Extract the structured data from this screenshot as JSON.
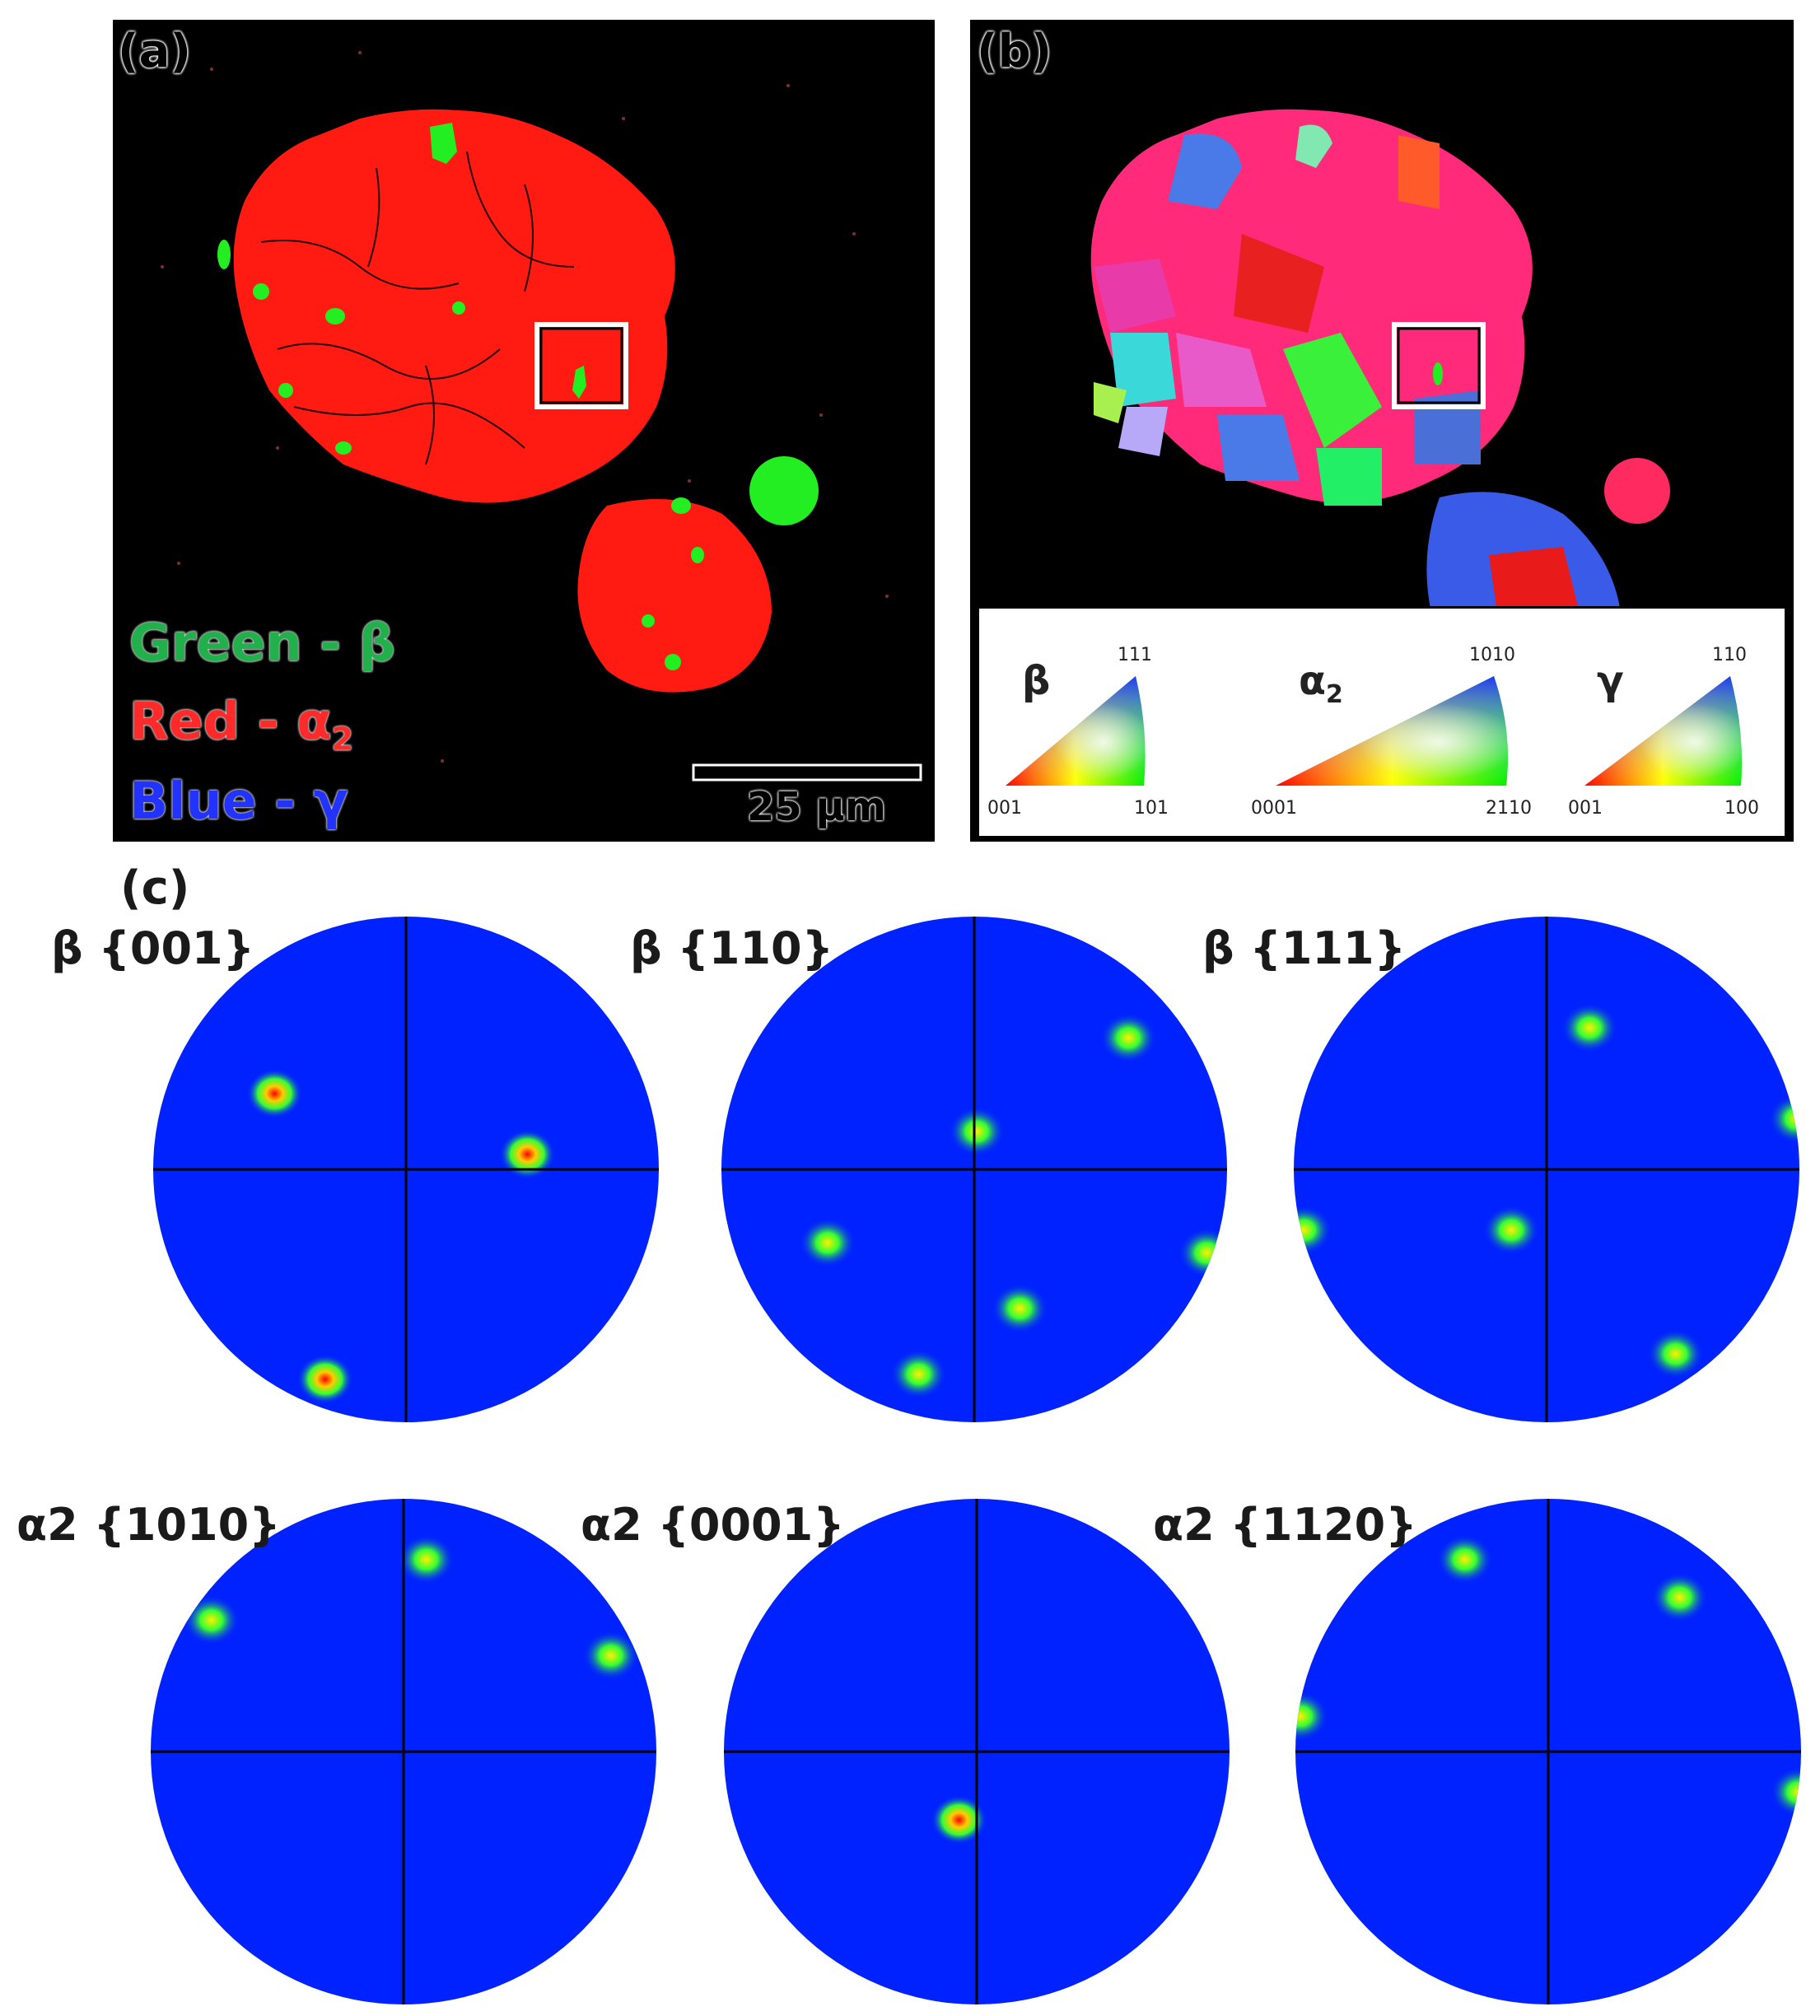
{
  "panels": {
    "a": {
      "label": "(a)"
    },
    "b": {
      "label": "(b)"
    },
    "c": {
      "label": "(c)"
    }
  },
  "phase_legend": [
    {
      "text": "Green - β",
      "color": "#22b04c"
    },
    {
      "text": "Red - α",
      "sub": "2",
      "color": "#ff2a2a"
    },
    {
      "text": "Blue - γ",
      "color": "#2233ff"
    }
  ],
  "scale_bar": {
    "label": "25 µm"
  },
  "ipf_key": [
    {
      "symbol": "β",
      "sub": "",
      "corners": {
        "left": "001",
        "right": "101",
        "top": "111"
      }
    },
    {
      "symbol": "α",
      "sub": "2",
      "corners": {
        "left": "0001",
        "right": "2110",
        "top": "1010"
      }
    },
    {
      "symbol": "γ",
      "sub": "",
      "corners": {
        "left": "001",
        "right": "100",
        "top": "110"
      }
    }
  ],
  "pole_figures": [
    {
      "label": "β {001}",
      "poles": [
        [
          -0.52,
          -0.3,
          1
        ],
        [
          0.48,
          -0.06,
          1
        ],
        [
          -0.32,
          0.83,
          1
        ]
      ]
    },
    {
      "label": "β {110}",
      "poles": [
        [
          -0.22,
          0.81,
          0.6
        ],
        [
          0.61,
          -0.52,
          0.6
        ],
        [
          0.01,
          -0.15,
          0.6
        ],
        [
          -0.58,
          0.29,
          0.6
        ],
        [
          0.18,
          0.55,
          0.6
        ],
        [
          0.92,
          0.33,
          0.55
        ]
      ]
    },
    {
      "label": "β {111}",
      "poles": [
        [
          0.17,
          -0.56,
          0.7
        ],
        [
          -0.14,
          0.24,
          0.7
        ],
        [
          0.51,
          0.73,
          0.7
        ],
        [
          -0.96,
          0.24,
          0.65
        ],
        [
          0.99,
          -0.2,
          0.55
        ]
      ]
    },
    {
      "label": "α2 {1010}",
      "poles": [
        [
          0.09,
          -0.76,
          0.5
        ],
        [
          -0.76,
          -0.52,
          0.5
        ],
        [
          0.82,
          -0.38,
          0.5
        ]
      ]
    },
    {
      "label": "α2 {0001}",
      "poles": [
        [
          -0.07,
          0.27,
          1
        ]
      ]
    },
    {
      "label": "α2 {1120}",
      "poles": [
        [
          -0.33,
          -0.76,
          0.5
        ],
        [
          0.52,
          -0.61,
          0.5
        ],
        [
          -0.98,
          -0.14,
          0.4
        ],
        [
          0.99,
          0.16,
          0.45
        ]
      ]
    }
  ]
}
